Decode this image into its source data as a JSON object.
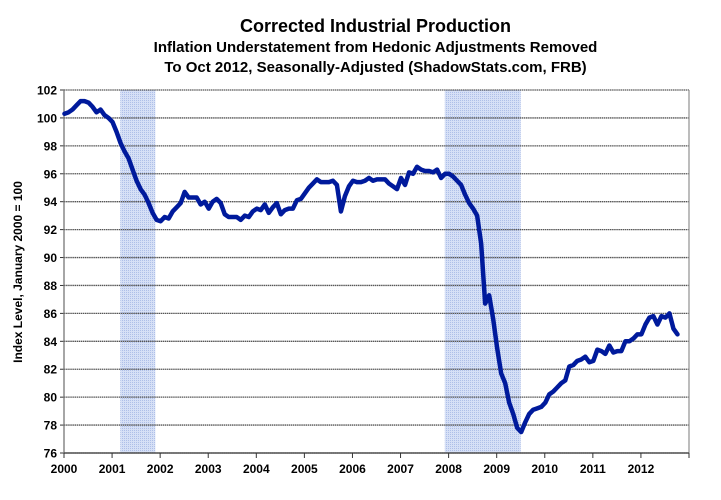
{
  "chart_data": {
    "type": "line",
    "title": "Corrected Industrial Production",
    "subtitle_lines": [
      "Inflation Understatement from Hedonic Adjustments Removed",
      "To Oct 2012, Seasonally-Adjusted (ShadowStats.com, FRB)"
    ],
    "xlabel": "",
    "ylabel": "Index Level, January 2000 = 100",
    "xlim": [
      2000,
      2013
    ],
    "ylim": [
      76,
      102
    ],
    "x_ticks": [
      "2000",
      "2001",
      "2002",
      "2003",
      "2004",
      "2005",
      "2006",
      "2007",
      "2008",
      "2009",
      "2010",
      "2011",
      "2012"
    ],
    "y_ticks": [
      "76",
      "78",
      "80",
      "82",
      "84",
      "86",
      "88",
      "90",
      "92",
      "94",
      "96",
      "98",
      "100",
      "102"
    ],
    "grid": true,
    "frequency": "monthly",
    "recessions": [
      [
        2001.17,
        2001.9
      ],
      [
        2007.92,
        2009.5
      ]
    ],
    "colors": {
      "line": "#001a9c",
      "recession": "#c9d5f2",
      "grid": "#555555"
    },
    "values_by_year": {
      "2000": [
        100.3,
        100.4,
        100.6,
        100.9,
        101.2,
        101.2,
        101.1,
        100.8,
        100.4,
        100.6,
        100.2,
        100.0
      ],
      "2001": [
        99.7,
        99.0,
        98.2,
        97.6,
        97.1,
        96.3,
        95.5,
        94.9,
        94.5,
        93.9,
        93.2,
        92.7
      ],
      "2002": [
        92.6,
        92.9,
        92.8,
        93.3,
        93.6,
        93.9,
        94.7,
        94.3,
        94.3,
        94.3,
        93.8,
        94.0
      ],
      "2003": [
        93.5,
        94.0,
        94.2,
        93.9,
        93.1,
        92.9,
        92.9,
        92.9,
        92.7,
        93.0,
        92.9,
        93.3
      ],
      "2004": [
        93.5,
        93.4,
        93.8,
        93.2,
        93.6,
        93.9,
        93.1,
        93.4,
        93.5,
        93.5,
        94.1,
        94.2
      ],
      "2005": [
        94.6,
        95.0,
        95.3,
        95.6,
        95.4,
        95.4,
        95.4,
        95.5,
        95.2,
        93.3,
        94.4,
        95.1
      ],
      "2006": [
        95.5,
        95.4,
        95.4,
        95.5,
        95.7,
        95.5,
        95.6,
        95.6,
        95.6,
        95.3,
        95.1,
        94.9
      ],
      "2007": [
        95.7,
        95.2,
        96.1,
        96.0,
        96.5,
        96.3,
        96.2,
        96.2,
        96.1,
        96.3,
        95.7,
        96.0
      ],
      "2008": [
        96.0,
        95.8,
        95.5,
        95.2,
        94.5,
        93.9,
        93.5,
        93.0,
        91.0,
        86.7,
        87.3,
        85.6
      ],
      "2009": [
        83.5,
        81.7,
        81.0,
        79.6,
        78.8,
        77.8,
        77.5,
        78.2,
        78.8,
        79.1,
        79.2,
        79.3
      ],
      "2010": [
        79.6,
        80.2,
        80.4,
        80.7,
        81.0,
        81.2,
        82.2,
        82.3,
        82.6,
        82.7,
        82.9,
        82.5
      ],
      "2011": [
        82.6,
        83.4,
        83.3,
        83.1,
        83.7,
        83.2,
        83.3,
        83.3,
        84.0,
        84.0,
        84.2,
        84.5
      ],
      "2012": [
        84.5,
        85.2,
        85.7,
        85.8,
        85.2,
        85.8,
        85.7,
        86.0,
        84.9,
        84.5
      ]
    }
  }
}
